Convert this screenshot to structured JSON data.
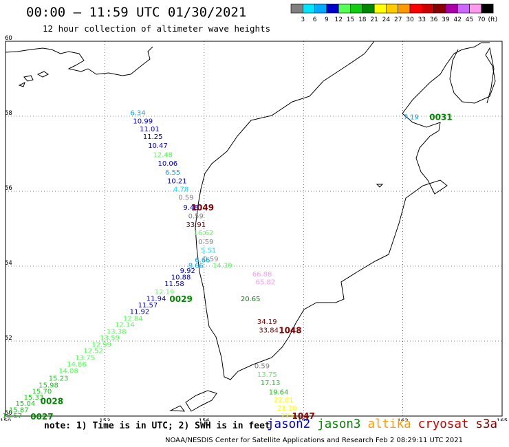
{
  "header": {
    "title": "00:00 – 11:59 UTC 01/30/2021",
    "subtitle": "12 hour collection of altimeter wave heights"
  },
  "colorbar": {
    "unit": "(ft)",
    "bins": [
      {
        "color": "#808080",
        "label": "3"
      },
      {
        "color": "#00e5ff",
        "label": "6"
      },
      {
        "color": "#00aaff",
        "label": "9"
      },
      {
        "color": "#0000cc",
        "label": "12"
      },
      {
        "color": "#55ff55",
        "label": "15"
      },
      {
        "color": "#11cc11",
        "label": "18"
      },
      {
        "color": "#008800",
        "label": "21"
      },
      {
        "color": "#ffff00",
        "label": "24"
      },
      {
        "color": "#ffcc00",
        "label": "27"
      },
      {
        "color": "#ff9900",
        "label": "30"
      },
      {
        "color": "#ff0000",
        "label": "33"
      },
      {
        "color": "#cc0000",
        "label": "36"
      },
      {
        "color": "#880000",
        "label": "39"
      },
      {
        "color": "#aa00aa",
        "label": "42"
      },
      {
        "color": "#cc66ff",
        "label": "45"
      },
      {
        "color": "#ff99ee",
        "label": "70"
      },
      {
        "color": "#000000",
        "label": ""
      }
    ]
  },
  "map": {
    "lon_ticks": [
      "150",
      "153",
      "156",
      "159",
      "162",
      "165"
    ],
    "lat_ticks": [
      "50",
      "52",
      "54",
      "56",
      "58",
      "60"
    ],
    "lon_range": [
      150,
      165
    ],
    "lat_range": [
      50,
      60
    ],
    "observations": [
      {
        "lon": 154.0,
        "lat": 58.08,
        "text": "6.34",
        "color": "#00aaff"
      },
      {
        "lon": 154.15,
        "lat": 57.86,
        "text": "10.99",
        "color": "#0000cc"
      },
      {
        "lon": 154.35,
        "lat": 57.65,
        "text": "11.01",
        "color": "#0000cc"
      },
      {
        "lon": 154.45,
        "lat": 57.45,
        "text": "11.25",
        "color": "#0000cc"
      },
      {
        "lon": 154.6,
        "lat": 57.21,
        "text": "10.47",
        "color": "#0000cc"
      },
      {
        "lon": 154.75,
        "lat": 56.96,
        "text": "12.48",
        "color": "#55ff55"
      },
      {
        "lon": 154.9,
        "lat": 56.73,
        "text": "10.06",
        "color": "#0000cc"
      },
      {
        "lon": 155.05,
        "lat": 56.5,
        "text": "6.55",
        "color": "#00aaff"
      },
      {
        "lon": 155.18,
        "lat": 56.27,
        "text": "10.21",
        "color": "#0000cc"
      },
      {
        "lon": 155.3,
        "lat": 56.05,
        "text": "4.78",
        "color": "#00e5ff"
      },
      {
        "lon": 155.45,
        "lat": 55.83,
        "text": "0.59",
        "color": "#808080"
      },
      {
        "lon": 155.6,
        "lat": 55.56,
        "text": "9.48",
        "color": "#0000cc"
      },
      {
        "lon": 155.75,
        "lat": 55.33,
        "text": "0.59",
        "color": "#808080"
      },
      {
        "lon": 155.75,
        "lat": 55.1,
        "text": "33.91",
        "color": "#880000"
      },
      {
        "lon": 155.98,
        "lat": 54.88,
        "text": "16.62",
        "color": "#55ff55"
      },
      {
        "lon": 156.05,
        "lat": 54.64,
        "text": "0.59",
        "color": "#808080"
      },
      {
        "lon": 156.13,
        "lat": 54.41,
        "text": "5.51",
        "color": "#00e5ff"
      },
      {
        "lon": 156.2,
        "lat": 54.18,
        "text": "0.59",
        "color": "#808080"
      },
      {
        "lon": 155.95,
        "lat": 54.16,
        "text": "6.66",
        "color": "#00aaff"
      },
      {
        "lon": 156.55,
        "lat": 54.01,
        "text": "14.39",
        "color": "#55ff55"
      },
      {
        "lon": 155.75,
        "lat": 54.01,
        "text": "8.66",
        "color": "#00aaff"
      },
      {
        "lon": 155.5,
        "lat": 53.87,
        "text": "9.92",
        "color": "#0000cc"
      },
      {
        "lon": 155.3,
        "lat": 53.7,
        "text": "10.88",
        "color": "#0000cc"
      },
      {
        "lon": 155.1,
        "lat": 53.52,
        "text": "11.58",
        "color": "#0000cc"
      },
      {
        "lon": 154.8,
        "lat": 53.3,
        "text": "12.19",
        "color": "#55ff55"
      },
      {
        "lon": 154.55,
        "lat": 53.13,
        "text": "11.94",
        "color": "#0000cc"
      },
      {
        "lon": 154.3,
        "lat": 52.95,
        "text": "11.57",
        "color": "#0000cc"
      },
      {
        "lon": 154.05,
        "lat": 52.78,
        "text": "11.92",
        "color": "#0000cc"
      },
      {
        "lon": 153.85,
        "lat": 52.6,
        "text": "12.84",
        "color": "#55ff55"
      },
      {
        "lon": 153.6,
        "lat": 52.43,
        "text": "12.14",
        "color": "#55ff55"
      },
      {
        "lon": 153.35,
        "lat": 52.25,
        "text": "13.38",
        "color": "#55ff55"
      },
      {
        "lon": 153.15,
        "lat": 52.08,
        "text": "13.59",
        "color": "#55ff55"
      },
      {
        "lon": 152.9,
        "lat": 51.9,
        "text": "12.99",
        "color": "#55ff55"
      },
      {
        "lon": 152.65,
        "lat": 51.73,
        "text": "12.52",
        "color": "#55ff55"
      },
      {
        "lon": 152.4,
        "lat": 51.55,
        "text": "13.75",
        "color": "#55ff55"
      },
      {
        "lon": 152.15,
        "lat": 51.38,
        "text": "14.86",
        "color": "#55ff55"
      },
      {
        "lon": 151.9,
        "lat": 51.2,
        "text": "14.08",
        "color": "#55ff55"
      },
      {
        "lon": 151.6,
        "lat": 51.0,
        "text": "15.23",
        "color": "#11cc11"
      },
      {
        "lon": 151.3,
        "lat": 50.82,
        "text": "15.98",
        "color": "#11cc11"
      },
      {
        "lon": 151.1,
        "lat": 50.65,
        "text": "15.70",
        "color": "#11cc11"
      },
      {
        "lon": 150.85,
        "lat": 50.5,
        "text": "15.33",
        "color": "#11cc11"
      },
      {
        "lon": 150.6,
        "lat": 50.33,
        "text": "15.04",
        "color": "#11cc11"
      },
      {
        "lon": 150.4,
        "lat": 50.16,
        "text": "15.87",
        "color": "#11cc11"
      },
      {
        "lon": 150.2,
        "lat": 50.0,
        "text": "15.57",
        "color": "#11cc11"
      },
      {
        "lon": 157.75,
        "lat": 53.78,
        "text": "66.88",
        "color": "#ff99ee"
      },
      {
        "lon": 157.85,
        "lat": 53.57,
        "text": "65.82",
        "color": "#ff99ee"
      },
      {
        "lon": 157.4,
        "lat": 53.12,
        "text": "20.65",
        "color": "#008800"
      },
      {
        "lon": 157.9,
        "lat": 52.51,
        "text": "34.19",
        "color": "#880000"
      },
      {
        "lon": 157.95,
        "lat": 52.28,
        "text": "33.84",
        "color": "#880000"
      },
      {
        "lon": 157.75,
        "lat": 51.33,
        "text": "0.59",
        "color": "#808080"
      },
      {
        "lon": 157.9,
        "lat": 51.1,
        "text": "13.75",
        "color": "#55ff55"
      },
      {
        "lon": 158.0,
        "lat": 50.88,
        "text": "17.13",
        "color": "#11cc11"
      },
      {
        "lon": 158.25,
        "lat": 50.63,
        "text": "19.64",
        "color": "#11cc11"
      },
      {
        "lon": 158.4,
        "lat": 50.42,
        "text": "22.61",
        "color": "#ffff00"
      },
      {
        "lon": 158.5,
        "lat": 50.2,
        "text": "21.10",
        "color": "#ffff00"
      },
      {
        "lon": 158.6,
        "lat": 50.0,
        "text": "22.03",
        "color": "#ffff00"
      },
      {
        "lon": 162.25,
        "lat": 57.97,
        "text": "7.19",
        "color": "#00aaff"
      }
    ],
    "pass_ids": [
      {
        "lon": 155.95,
        "lat": 55.56,
        "text": "1049",
        "color": "#880000"
      },
      {
        "lon": 155.3,
        "lat": 53.12,
        "text": "0029",
        "color": "#008800"
      },
      {
        "lon": 158.6,
        "lat": 52.28,
        "text": "1048",
        "color": "#880000"
      },
      {
        "lon": 159.0,
        "lat": 50.0,
        "text": "1047",
        "color": "#880000"
      },
      {
        "lon": 151.4,
        "lat": 50.39,
        "text": "0028",
        "color": "#008800"
      },
      {
        "lon": 151.1,
        "lat": 49.98,
        "text": "0027",
        "color": "#008800"
      },
      {
        "lon": 163.15,
        "lat": 57.97,
        "text": "0031",
        "color": "#008800"
      }
    ]
  },
  "footer": {
    "note": "note: 1) Time is in UTC; 2) SWH is in feet",
    "satellites": [
      {
        "name": "jason2",
        "color": "#0000cc"
      },
      {
        "name": "jason3",
        "color": "#008800"
      },
      {
        "name": "altika",
        "color": "#ff9900"
      },
      {
        "name": "cryosat",
        "color": "#cc0000"
      },
      {
        "name": "s3a",
        "color": "#880000"
      }
    ],
    "credit": "NOAA/NESDIS Center for Satellite Applications and Research    Feb  2 08:29:11 UTC 2021"
  }
}
